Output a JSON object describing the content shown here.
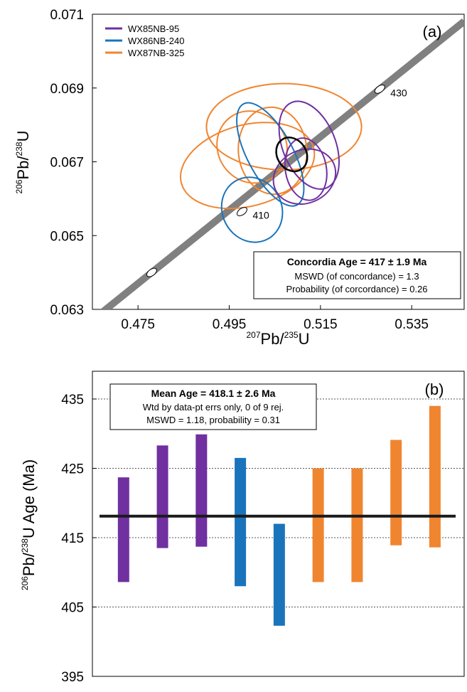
{
  "chart_data": [
    {
      "type": "scatter",
      "panel_label": "(a)",
      "xlabel": {
        "iso_sup": "207",
        "main": "Pb/",
        "den_sup": "235",
        "den": "U"
      },
      "ylabel": {
        "iso_sup": "206",
        "main": "Pb/",
        "den_sup": "238",
        "den": "U"
      },
      "xlim": [
        0.465,
        0.5465
      ],
      "ylim": [
        0.063,
        0.071
      ],
      "x_ticks": [
        0.475,
        0.495,
        0.515,
        0.535
      ],
      "x_tick_labels": [
        "0.475",
        "0.495",
        "0.515",
        "0.535"
      ],
      "y_ticks": [
        0.063,
        0.065,
        0.067,
        0.069,
        0.071
      ],
      "y_tick_labels": [
        "0.063",
        "0.065",
        "0.067",
        "0.069",
        "0.071"
      ],
      "legend": [
        {
          "name": "WX85NB-95",
          "color": "#7030a0"
        },
        {
          "name": "WX86NB-240",
          "color": "#1a74bb"
        },
        {
          "name": "WX87NB-325",
          "color": "#f08530"
        }
      ],
      "concordia": {
        "color": "#808080",
        "points": [
          {
            "x": 0.478,
            "y": 0.064,
            "label": ""
          },
          {
            "x": 0.4978,
            "y": 0.06565,
            "label": "410"
          },
          {
            "x": 0.528,
            "y": 0.06897,
            "label": "430"
          }
        ]
      },
      "ellipses": [
        {
          "series": "WX87NB-325",
          "x": 0.507,
          "y": 0.06795,
          "rx": 0.017,
          "ry": 0.00117,
          "angle": 0
        },
        {
          "series": "WX87NB-325",
          "x": 0.499,
          "y": 0.0669,
          "rx": 0.015,
          "ry": 0.0011,
          "angle": 15
        },
        {
          "series": "WX87NB-325",
          "x": 0.5045,
          "y": 0.0673,
          "rx": 0.0075,
          "ry": 0.00118,
          "angle": 5
        },
        {
          "series": "WX87NB-325",
          "x": 0.5,
          "y": 0.0674,
          "rx": 0.0075,
          "ry": 0.001,
          "angle": 35
        },
        {
          "series": "WX86NB-240",
          "x": 0.504,
          "y": 0.0672,
          "rx": 0.005,
          "ry": 0.00155,
          "angle": 28
        },
        {
          "series": "WX86NB-240",
          "x": 0.5,
          "y": 0.0657,
          "rx": 0.0065,
          "ry": 0.0009,
          "angle": 28
        },
        {
          "series": "WX85NB-95",
          "x": 0.5125,
          "y": 0.06745,
          "rx": 0.0058,
          "ry": 0.00125,
          "angle": 22
        },
        {
          "series": "WX85NB-95",
          "x": 0.5115,
          "y": 0.0666,
          "rx": 0.007,
          "ry": 0.00072,
          "angle": 24
        },
        {
          "series": "WX85NB-95",
          "x": 0.5118,
          "y": 0.0668,
          "rx": 0.0045,
          "ry": 0.00085,
          "angle": 10
        }
      ],
      "concordia_ellipse": {
        "x": 0.5087,
        "y": 0.0672,
        "rx": 0.0032,
        "ry": 0.00048,
        "angle": 32,
        "color": "#000000"
      },
      "result_box": {
        "title": "Concordia Age = 417 ± 1.9 Ma",
        "line1": "MSWD (of concordance) = 1.3",
        "line2": "Probability (of corcordance) = 0.26"
      }
    },
    {
      "type": "bar",
      "panel_label": "(b)",
      "ylabel": {
        "iso_sup": "206",
        "main": "Pb/",
        "den_sup": "238",
        "den": "U Age (Ma)"
      },
      "ylim": [
        395,
        439
      ],
      "y_ticks": [
        395,
        405,
        415,
        425,
        435
      ],
      "y_tick_labels": [
        "395",
        "405",
        "415",
        "425",
        "435"
      ],
      "gridlines": [
        405,
        415,
        425,
        435
      ],
      "mean": 418.1,
      "bars": [
        {
          "series": "WX85NB-95",
          "low": 408.6,
          "high": 423.7
        },
        {
          "series": "WX85NB-95",
          "low": 413.5,
          "high": 428.3
        },
        {
          "series": "WX85NB-95",
          "low": 413.7,
          "high": 429.9
        },
        {
          "series": "WX86NB-240",
          "low": 408.0,
          "high": 426.5
        },
        {
          "series": "WX86NB-240",
          "low": 402.3,
          "high": 417.0
        },
        {
          "series": "WX87NB-325",
          "low": 408.6,
          "high": 425.0
        },
        {
          "series": "WX87NB-325",
          "low": 408.6,
          "high": 425.0
        },
        {
          "series": "WX87NB-325",
          "low": 413.9,
          "high": 429.1
        },
        {
          "series": "WX87NB-325",
          "low": 413.6,
          "high": 434.0
        }
      ],
      "result_box": {
        "title": "Mean Age = 418.1 ± 2.6 Ma",
        "line1": "Wtd by data-pt errs only, 0 of 9 rej.",
        "line2": "MSWD = 1.18, probability = 0.31"
      }
    }
  ]
}
